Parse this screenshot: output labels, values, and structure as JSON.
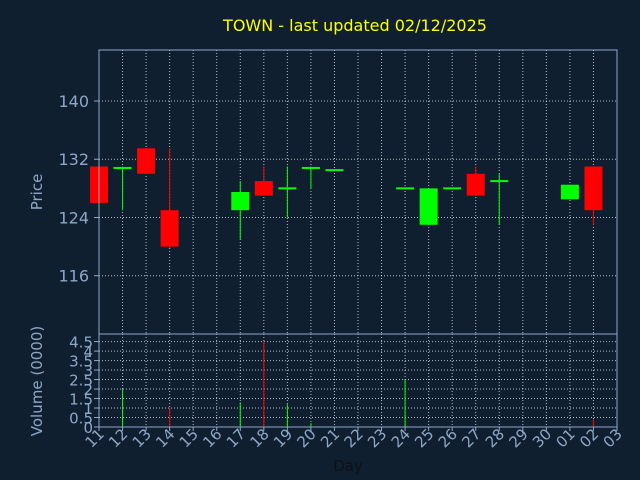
{
  "chart_data": {
    "type": "candlestick",
    "title": "TOWN - last updated 02/12/2025",
    "xlabel": "Day",
    "price_panel": {
      "ylabel": "Price",
      "yticks": [
        116,
        124,
        132,
        140
      ],
      "ylim": [
        108,
        147
      ]
    },
    "volume_panel": {
      "ylabel": "Volume (0000)",
      "yticks": [
        "0",
        "0.5",
        "1",
        "1.5",
        "2",
        "2.5",
        "3",
        "3.5",
        "4",
        "4.5"
      ],
      "ylim": [
        0,
        4.9
      ]
    },
    "x_tick_labels": [
      "11",
      "12",
      "13",
      "14",
      "15",
      "16",
      "17",
      "18",
      "19",
      "20",
      "21",
      "22",
      "23",
      "24",
      "25",
      "26",
      "27",
      "28",
      "29",
      "30",
      "01",
      "02",
      "03"
    ],
    "grid": true,
    "colors": {
      "background": "#0f1f30",
      "axis": "#8fa7c7",
      "title": "#ffff00",
      "up": "#00ff00",
      "down": "#ff0000",
      "grid": "#ffffff"
    },
    "candles": [
      {
        "x": 0,
        "open": 131.0,
        "high": 131.0,
        "low": 126.0,
        "close": 126.0,
        "volume": 0.0
      },
      {
        "x": 1,
        "open": 130.8,
        "high": 131.0,
        "low": 125.0,
        "close": 130.8,
        "volume": 2.0
      },
      {
        "x": 2,
        "open": 133.5,
        "high": 133.5,
        "low": 130.0,
        "close": 130.0,
        "volume": 0.0
      },
      {
        "x": 3,
        "open": 125.0,
        "high": 133.5,
        "low": 119.8,
        "close": 120.0,
        "volume": 1.0
      },
      {
        "x": 6,
        "open": 125.0,
        "high": 129.0,
        "low": 121.0,
        "close": 127.5,
        "volume": 1.3
      },
      {
        "x": 7,
        "open": 129.0,
        "high": 131.0,
        "low": 127.0,
        "close": 127.0,
        "volume": 4.5
      },
      {
        "x": 8,
        "open": 128.0,
        "high": 131.0,
        "low": 124.0,
        "close": 128.0,
        "volume": 1.2
      },
      {
        "x": 9,
        "open": 130.8,
        "high": 131.0,
        "low": 128.0,
        "close": 130.8,
        "volume": 0.2
      },
      {
        "x": 10,
        "open": 130.5,
        "high": 130.5,
        "low": 130.5,
        "close": 130.5,
        "volume": 0.0
      },
      {
        "x": 13,
        "open": 128.0,
        "high": 128.0,
        "low": 128.0,
        "close": 128.0,
        "volume": 2.5
      },
      {
        "x": 14,
        "open": 123.0,
        "high": 128.0,
        "low": 123.0,
        "close": 128.0,
        "volume": 0.0
      },
      {
        "x": 15,
        "open": 128.0,
        "high": 128.0,
        "low": 128.0,
        "close": 128.0,
        "volume": 0.0
      },
      {
        "x": 16,
        "open": 130.0,
        "high": 131.0,
        "low": 127.0,
        "close": 127.0,
        "volume": 0.0
      },
      {
        "x": 17,
        "open": 129.0,
        "high": 130.0,
        "low": 123.0,
        "close": 129.0,
        "volume": 0.0
      },
      {
        "x": 20,
        "open": 126.5,
        "high": 128.5,
        "low": 126.5,
        "close": 128.5,
        "volume": 0.0
      },
      {
        "x": 21,
        "open": 131.0,
        "high": 131.0,
        "low": 123.0,
        "close": 125.0,
        "volume": 0.4
      }
    ]
  }
}
